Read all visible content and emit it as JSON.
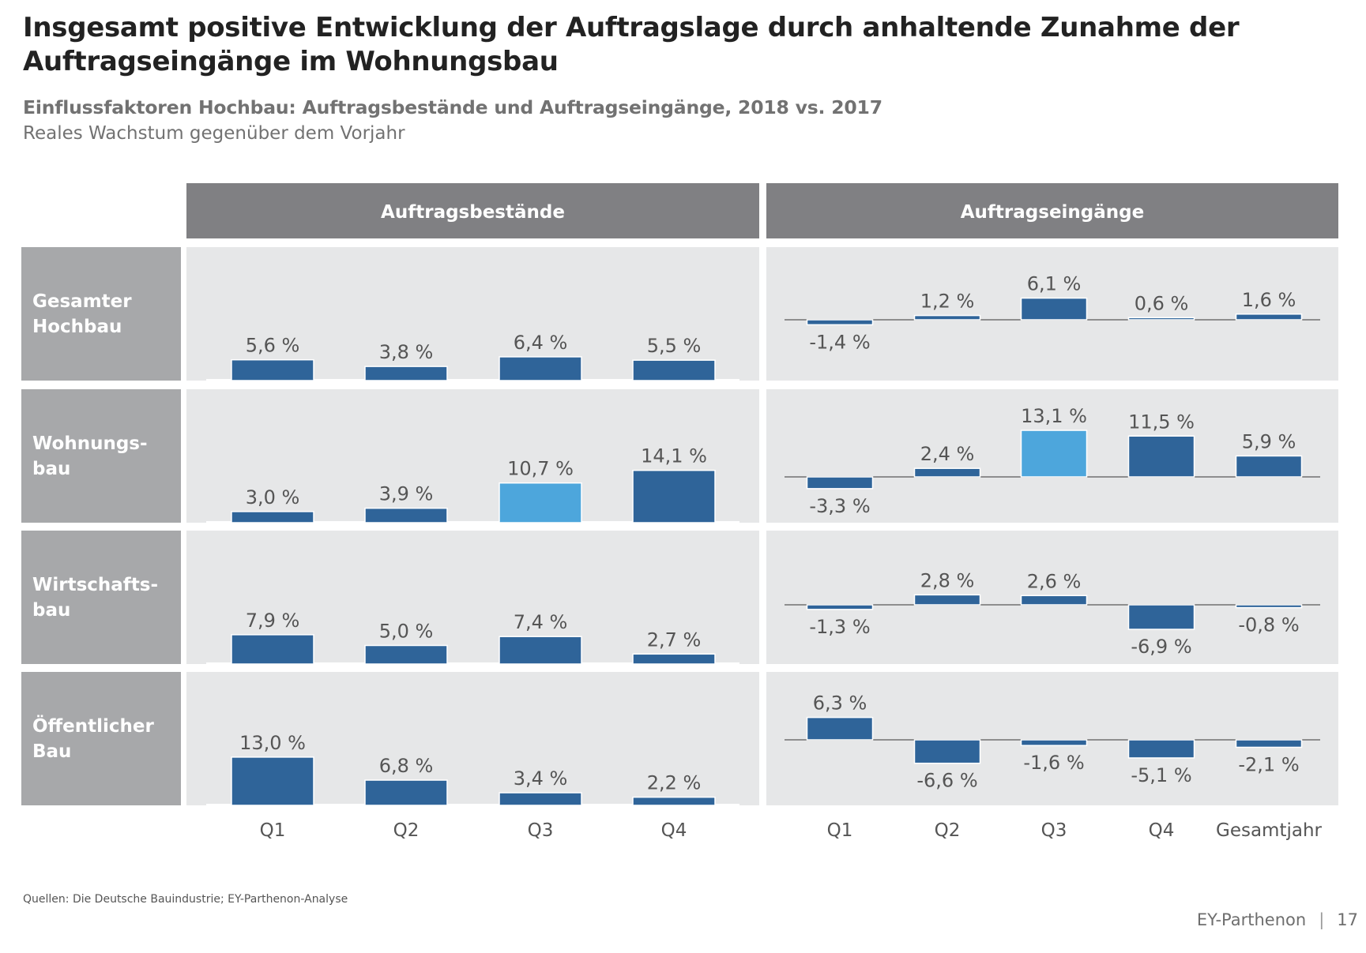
{
  "title": "Insgesamt positive Entwicklung der Auftragslage durch anhaltende Zunahme der Auftragseingänge im Wohnungsbau",
  "subtitle": "Einflussfaktoren Hochbau: Auftragsbestände und Auftragseingänge, 2018 vs. 2017",
  "subtitle2": "Reales Wachstum gegenüber dem Vorjahr",
  "source": "Quellen: Die Deutsche Bauindustrie; EY-Parthenon-Analyse",
  "footer": {
    "brand": "EY-Parthenon",
    "separator": "|",
    "page": "17"
  },
  "colors": {
    "bar": "#2f6499",
    "highlight": "#4da6dc",
    "panel": "#e6e7e8",
    "header": "#808083",
    "rowlabel": "#a7a8aa",
    "labeltext": "#555555"
  },
  "chart_data": [
    {
      "type": "bar",
      "panel_title": "Auftragsbestände",
      "categories": [
        "Q1",
        "Q2",
        "Q3",
        "Q4"
      ],
      "unit": "%",
      "series": [
        {
          "name": "Gesamter Hochbau",
          "values": [
            5.6,
            3.8,
            6.4,
            5.5
          ],
          "labels": [
            "5,6 %",
            "3,8 %",
            "6,4 %",
            "5,5 %"
          ]
        },
        {
          "name": "Wohnungsbau",
          "values": [
            3.0,
            3.9,
            10.7,
            14.1
          ],
          "labels": [
            "3,0 %",
            "3,9 %",
            "10,7 %",
            "14,1 %"
          ],
          "highlight_index": 2
        },
        {
          "name": "Wirtschaftsbau",
          "values": [
            7.9,
            5.0,
            7.4,
            2.7
          ],
          "labels": [
            "7,9 %",
            "5,0 %",
            "7,4 %",
            "2,7 %"
          ]
        },
        {
          "name": "Öffentlicher Bau",
          "values": [
            13.0,
            6.8,
            3.4,
            2.2
          ],
          "labels": [
            "13,0 %",
            "6,8 %",
            "3,4 %",
            "2,2 %"
          ]
        }
      ]
    },
    {
      "type": "bar",
      "panel_title": "Auftragseingänge",
      "categories": [
        "Q1",
        "Q2",
        "Q3",
        "Q4",
        "Gesamtjahr"
      ],
      "unit": "%",
      "series": [
        {
          "name": "Gesamter Hochbau",
          "values": [
            -1.4,
            1.2,
            6.1,
            0.6,
            1.6
          ],
          "labels": [
            "-1,4 %",
            "1,2 %",
            "6,1 %",
            "0,6 %",
            "1,6 %"
          ]
        },
        {
          "name": "Wohnungsbau",
          "values": [
            -3.3,
            2.4,
            13.1,
            11.5,
            5.9
          ],
          "labels": [
            "-3,3 %",
            "2,4 %",
            "13,1 %",
            "11,5 %",
            "5,9 %"
          ],
          "highlight_index": 2
        },
        {
          "name": "Wirtschaftsbau",
          "values": [
            -1.3,
            2.8,
            2.6,
            -6.9,
            -0.8
          ],
          "labels": [
            "-1,3 %",
            "2,8 %",
            "2,6 %",
            "-6,9 %",
            "-0,8 %"
          ]
        },
        {
          "name": "Öffentlicher Bau",
          "values": [
            6.3,
            -6.6,
            -1.6,
            -5.1,
            -2.1
          ],
          "labels": [
            "6,3 %",
            "-6,6 %",
            "-1,6 %",
            "-5,1 %",
            "-2,1 %"
          ]
        }
      ]
    }
  ],
  "row_labels": [
    [
      "Gesamter",
      "Hochbau"
    ],
    [
      "Wohnungs-",
      "bau"
    ],
    [
      "Wirtschafts-",
      "bau"
    ],
    [
      "Öffentlicher",
      "Bau"
    ]
  ]
}
